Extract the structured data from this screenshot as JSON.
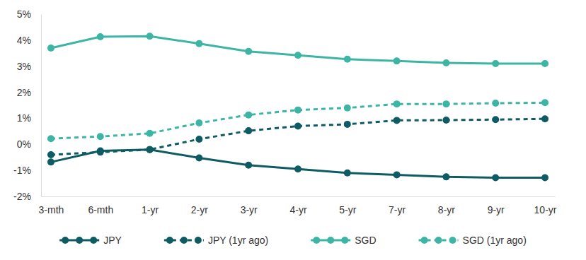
{
  "chart_data": {
    "type": "line",
    "categories": [
      "3-mth",
      "6-mth",
      "1-yr",
      "2-yr",
      "3-yr",
      "4-yr",
      "5-yr",
      "7-yr",
      "8-yr",
      "9-yr",
      "10-yr"
    ],
    "series": [
      {
        "name": "JPY",
        "color": "#0e5b63",
        "line_style": "solid",
        "marker": "circle",
        "values": [
          -0.68,
          -0.25,
          -0.2,
          -0.52,
          -0.8,
          -0.95,
          -1.1,
          -1.17,
          -1.25,
          -1.28,
          -1.28
        ]
      },
      {
        "name": "JPY (1yr ago)",
        "color": "#0e5b63",
        "line_style": "dashed",
        "marker": "circle",
        "values": [
          -0.4,
          -0.3,
          -0.2,
          0.2,
          0.52,
          0.7,
          0.77,
          0.92,
          0.93,
          0.95,
          0.98
        ]
      },
      {
        "name": "SGD",
        "color": "#3db5a5",
        "line_style": "solid",
        "marker": "circle",
        "values": [
          3.7,
          4.13,
          4.15,
          3.87,
          3.57,
          3.42,
          3.27,
          3.2,
          3.13,
          3.1,
          3.1
        ]
      },
      {
        "name": "SGD (1yr ago)",
        "color": "#3db5a5",
        "line_style": "dashed",
        "marker": "circle",
        "values": [
          0.22,
          0.3,
          0.42,
          0.82,
          1.13,
          1.32,
          1.4,
          1.55,
          1.55,
          1.58,
          1.6
        ]
      }
    ],
    "ylim": [
      -2,
      5
    ],
    "yticks": [
      {
        "value": -2,
        "label": "-2%"
      },
      {
        "value": -1,
        "label": "-1%"
      },
      {
        "value": 0,
        "label": "0%"
      },
      {
        "value": 1,
        "label": "1%"
      },
      {
        "value": 2,
        "label": "2%"
      },
      {
        "value": 3,
        "label": "3%"
      },
      {
        "value": 4,
        "label": "4%"
      },
      {
        "value": 5,
        "label": "5%"
      }
    ],
    "grid": false,
    "legend": "bottom"
  }
}
